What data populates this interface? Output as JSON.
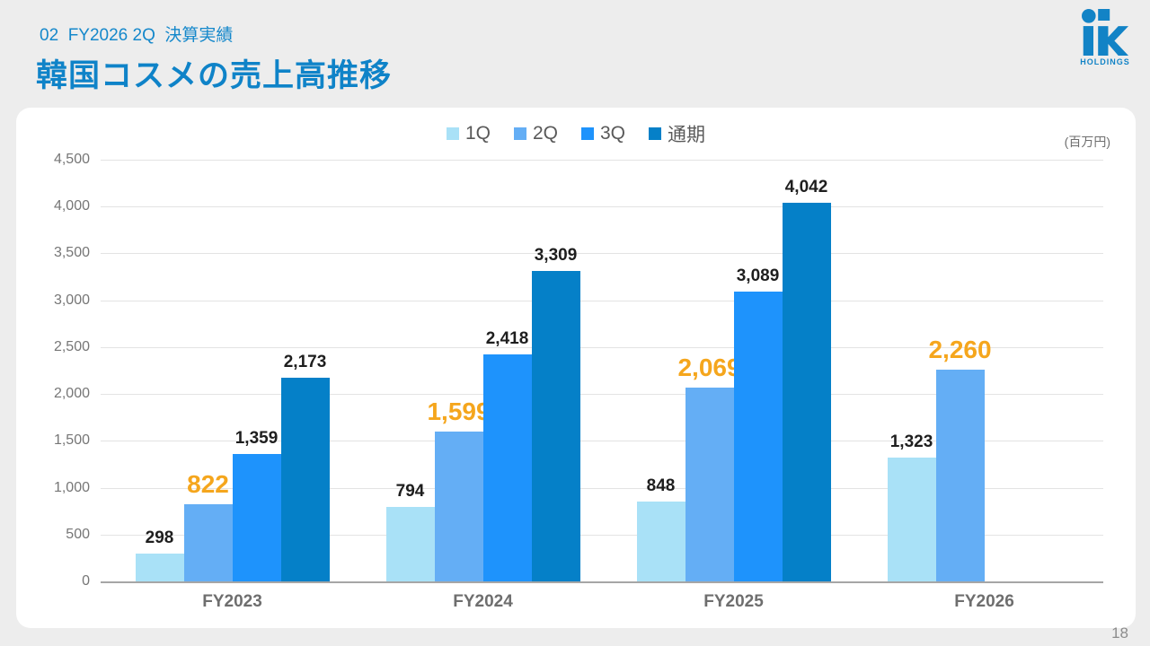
{
  "header": {
    "eyebrow": "02  FY2026 2Q  決算実績",
    "title": "韓国コスメの売上高推移"
  },
  "logo": {
    "text": "HOLDINGS",
    "color": "#1283C6"
  },
  "page_number": "18",
  "chart_data": {
    "type": "bar",
    "title": "韓国コスメの売上高推移",
    "unit_label": "(百万円)",
    "categories": [
      "FY2023",
      "FY2024",
      "FY2025",
      "FY2026"
    ],
    "series": [
      {
        "name": "1Q",
        "color": "#A9E1F7",
        "values": [
          298,
          794,
          848,
          1323
        ]
      },
      {
        "name": "2Q",
        "color": "#64AEF5",
        "values": [
          822,
          1599,
          2069,
          2260
        ],
        "label_highlight": true
      },
      {
        "name": "3Q",
        "color": "#1E93FC",
        "values": [
          1359,
          2418,
          3089,
          null
        ]
      },
      {
        "name": "通期",
        "color": "#0580C8",
        "values": [
          2173,
          3309,
          4042,
          null
        ]
      }
    ],
    "ylim": [
      0,
      4500
    ],
    "ytick_step": 500,
    "grid": true,
    "legend_position": "top",
    "highlight_color": "#F5A61D",
    "label_color": "#1E1E1E"
  }
}
